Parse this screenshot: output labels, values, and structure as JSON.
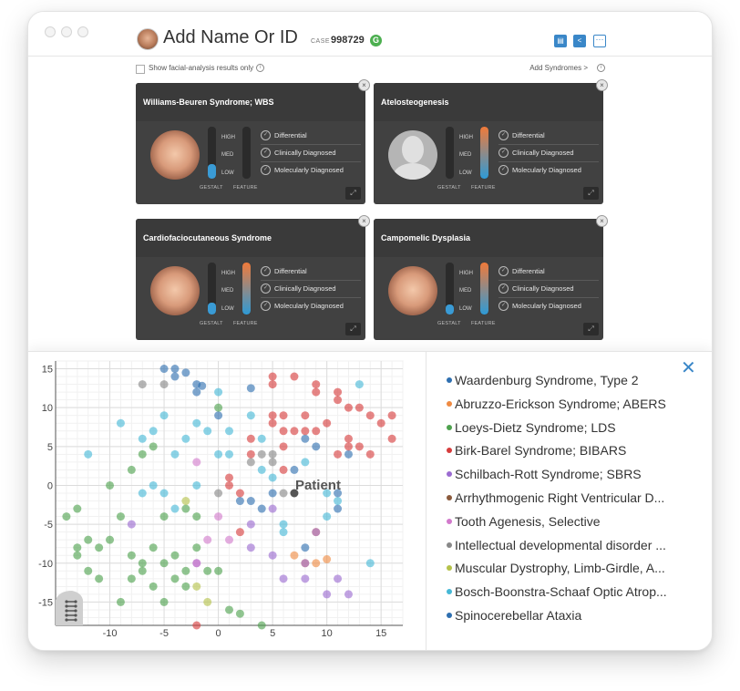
{
  "window": {
    "case_title": "Add Name Or ID",
    "case_label": "CASE",
    "case_number": "998729",
    "badge": "G",
    "toolbar_icons": [
      "document-icon",
      "share-icon",
      "more-icon"
    ]
  },
  "options": {
    "facial_only_label": "Show facial-analysis results only",
    "add_syndromes_label": "Add Syndromes >"
  },
  "cards": [
    {
      "title": "Williams-Beuren Syndrome; WBS",
      "face": "real",
      "gestalt": 0.28,
      "feature": 0
    },
    {
      "title": "Atelosteogenesis",
      "face": "silhouette",
      "gestalt": 0,
      "feature": 1.0
    },
    {
      "title": "Cardiofaciocutaneous Syndrome",
      "face": "real",
      "gestalt": 0.22,
      "feature": 1.0
    },
    {
      "title": "Campomelic Dysplasia",
      "face": "real",
      "gestalt": 0.2,
      "feature": 1.0
    }
  ],
  "card_labels": {
    "high": "HIGH",
    "med": "MED",
    "low": "LOW",
    "gestalt": "GESTALT",
    "feature": "FEATURE",
    "diagnoses": [
      "Differential",
      "Clinically Diagnosed",
      "Molecularly Diagnosed"
    ]
  },
  "colors": {
    "accent": "#3a87c8",
    "gestalt_bar": "#3a9bd5",
    "feature_gradient": [
      "#f07a3a",
      "#2e9ad6"
    ]
  },
  "legend": [
    {
      "label": "Waardenburg Syndrome, Type 2",
      "color": "#2e6fb0"
    },
    {
      "label": "Abruzzo-Erickson Syndrome; ABERS",
      "color": "#ef8a42"
    },
    {
      "label": "Loeys-Dietz Syndrome; LDS",
      "color": "#4ea24e"
    },
    {
      "label": "Birk-Barel Syndrome; BIBARS",
      "color": "#d63c3c"
    },
    {
      "label": "Schilbach-Rott Syndrome; SBRS",
      "color": "#9b6bd1"
    },
    {
      "label": "Arrhythmogenic Right Ventricular D...",
      "color": "#8b5a3c"
    },
    {
      "label": "Tooth Agenesis, Selective",
      "color": "#d27acc"
    },
    {
      "label": "Intellectual developmental disorder ...",
      "color": "#888888"
    },
    {
      "label": "Muscular Dystrophy, Limb-Girdle, A...",
      "color": "#b5c24a"
    },
    {
      "label": "Bosch-Boonstra-Schaaf Optic Atrop...",
      "color": "#46b8d6"
    },
    {
      "label": "Spinocerebellar Ataxia",
      "color": "#2e6fb0"
    }
  ],
  "chart_data": {
    "type": "scatter",
    "xlim": [
      -15,
      17
    ],
    "ylim": [
      -18,
      16
    ],
    "xticks": [
      -10,
      -5,
      0,
      5,
      10,
      15
    ],
    "yticks": [
      15,
      10,
      5,
      0,
      -5,
      -10,
      -15
    ],
    "grid": true,
    "annotation": {
      "text": "Patient",
      "x": 7,
      "y": -1
    },
    "series": [
      {
        "color": "#2e6fb0",
        "points": [
          [
            -5,
            15
          ],
          [
            -4,
            15
          ],
          [
            -4,
            14
          ],
          [
            -3,
            14.5
          ],
          [
            -2,
            13
          ],
          [
            -2,
            12
          ],
          [
            -1.5,
            12.8
          ],
          [
            0,
            9
          ],
          [
            3,
            12.5
          ],
          [
            9,
            5
          ],
          [
            8,
            6
          ],
          [
            5,
            -1
          ],
          [
            2,
            -2
          ],
          [
            3,
            -2
          ],
          [
            4,
            -3
          ],
          [
            7,
            2
          ],
          [
            8,
            -8
          ],
          [
            11,
            -1
          ],
          [
            11,
            -3
          ],
          [
            12,
            4
          ]
        ]
      },
      {
        "color": "#ef8a42",
        "points": [
          [
            9,
            -10
          ],
          [
            10,
            -9.5
          ],
          [
            7,
            -9
          ],
          [
            9,
            -6
          ],
          [
            8,
            -10
          ]
        ]
      },
      {
        "color": "#4ea24e",
        "points": [
          [
            -14,
            -4
          ],
          [
            -13,
            -3
          ],
          [
            -13,
            -8
          ],
          [
            -12,
            -7
          ],
          [
            -11,
            -8
          ],
          [
            -11,
            -12
          ],
          [
            -10,
            0
          ],
          [
            -9,
            -15
          ],
          [
            -8,
            -9
          ],
          [
            -8,
            -12
          ],
          [
            -7,
            -10
          ],
          [
            -7,
            -11
          ],
          [
            -6,
            -8
          ],
          [
            -6,
            -13
          ],
          [
            -5,
            -10
          ],
          [
            -5,
            -15
          ],
          [
            -4,
            -9
          ],
          [
            -4,
            -12
          ],
          [
            -3,
            -11
          ],
          [
            -3,
            -13
          ],
          [
            -2,
            -8
          ],
          [
            -1,
            -11
          ],
          [
            0,
            -11
          ],
          [
            1,
            -16
          ],
          [
            2,
            -16.5
          ],
          [
            -8,
            2
          ],
          [
            -7,
            4
          ],
          [
            -6,
            5
          ],
          [
            0,
            10
          ],
          [
            4,
            -18
          ],
          [
            -5,
            -4
          ],
          [
            -3,
            -3
          ],
          [
            -2,
            -4
          ],
          [
            -9,
            -4
          ],
          [
            -10,
            -7
          ],
          [
            -12,
            -11
          ],
          [
            -13,
            -9
          ]
        ]
      },
      {
        "color": "#d63c3c",
        "points": [
          [
            5,
            14
          ],
          [
            5,
            13
          ],
          [
            7,
            14
          ],
          [
            9,
            13
          ],
          [
            9,
            12
          ],
          [
            11,
            12
          ],
          [
            11,
            11
          ],
          [
            12,
            10
          ],
          [
            13,
            10
          ],
          [
            14,
            9
          ],
          [
            15,
            8
          ],
          [
            16,
            9
          ],
          [
            10,
            8
          ],
          [
            9,
            7
          ],
          [
            8,
            7
          ],
          [
            7,
            7
          ],
          [
            6,
            9
          ],
          [
            5,
            9
          ],
          [
            5,
            8
          ],
          [
            3,
            4
          ],
          [
            3,
            6
          ],
          [
            6,
            5
          ],
          [
            11,
            4
          ],
          [
            12,
            5
          ],
          [
            13,
            5
          ],
          [
            16,
            6
          ],
          [
            14,
            4
          ],
          [
            2,
            -1
          ],
          [
            2,
            -6
          ],
          [
            1,
            1
          ],
          [
            1,
            0
          ],
          [
            6,
            2
          ],
          [
            12,
            6
          ],
          [
            -2,
            -18
          ],
          [
            6,
            7
          ],
          [
            8,
            9
          ]
        ]
      },
      {
        "color": "#9b6bd1",
        "points": [
          [
            -8,
            -5
          ],
          [
            -2,
            -10
          ],
          [
            3,
            -8
          ],
          [
            5,
            -9
          ],
          [
            6,
            -12
          ],
          [
            8,
            -12
          ],
          [
            9,
            -6
          ],
          [
            8,
            -10
          ],
          [
            10,
            -14
          ],
          [
            11,
            -12
          ],
          [
            12,
            -14
          ],
          [
            3,
            -5
          ],
          [
            5,
            -3
          ]
        ]
      },
      {
        "color": "#d27acc",
        "points": [
          [
            -2,
            3
          ],
          [
            0,
            -4
          ],
          [
            -1,
            -7
          ],
          [
            1,
            -7
          ],
          [
            -2,
            -10
          ]
        ]
      },
      {
        "color": "#888888",
        "points": [
          [
            -7,
            13
          ],
          [
            -5,
            13
          ],
          [
            5,
            3
          ],
          [
            5,
            4
          ],
          [
            4,
            4
          ],
          [
            3,
            3
          ],
          [
            6,
            -1
          ],
          [
            0,
            -1
          ]
        ]
      },
      {
        "color": "#b5c24a",
        "points": [
          [
            -3,
            -2
          ],
          [
            -2,
            -13
          ],
          [
            -1,
            -15
          ]
        ]
      },
      {
        "color": "#46b8d6",
        "points": [
          [
            -12,
            4
          ],
          [
            -9,
            8
          ],
          [
            -7,
            6
          ],
          [
            -6,
            7
          ],
          [
            -5,
            9
          ],
          [
            -4,
            4
          ],
          [
            -3,
            6
          ],
          [
            -2,
            8
          ],
          [
            -1,
            7
          ],
          [
            0,
            4
          ],
          [
            1,
            4
          ],
          [
            1,
            7
          ],
          [
            3,
            9
          ],
          [
            4,
            6
          ],
          [
            4,
            2
          ],
          [
            5,
            1
          ],
          [
            6,
            -6
          ],
          [
            8,
            3
          ],
          [
            10,
            -1
          ],
          [
            11,
            -2
          ],
          [
            13,
            13
          ],
          [
            14,
            -10
          ],
          [
            -6,
            0
          ],
          [
            -7,
            -1
          ],
          [
            -5,
            -1
          ],
          [
            -4,
            -3
          ],
          [
            -2,
            0
          ],
          [
            0,
            12
          ],
          [
            6,
            -5
          ],
          [
            10,
            -4
          ]
        ]
      }
    ]
  }
}
